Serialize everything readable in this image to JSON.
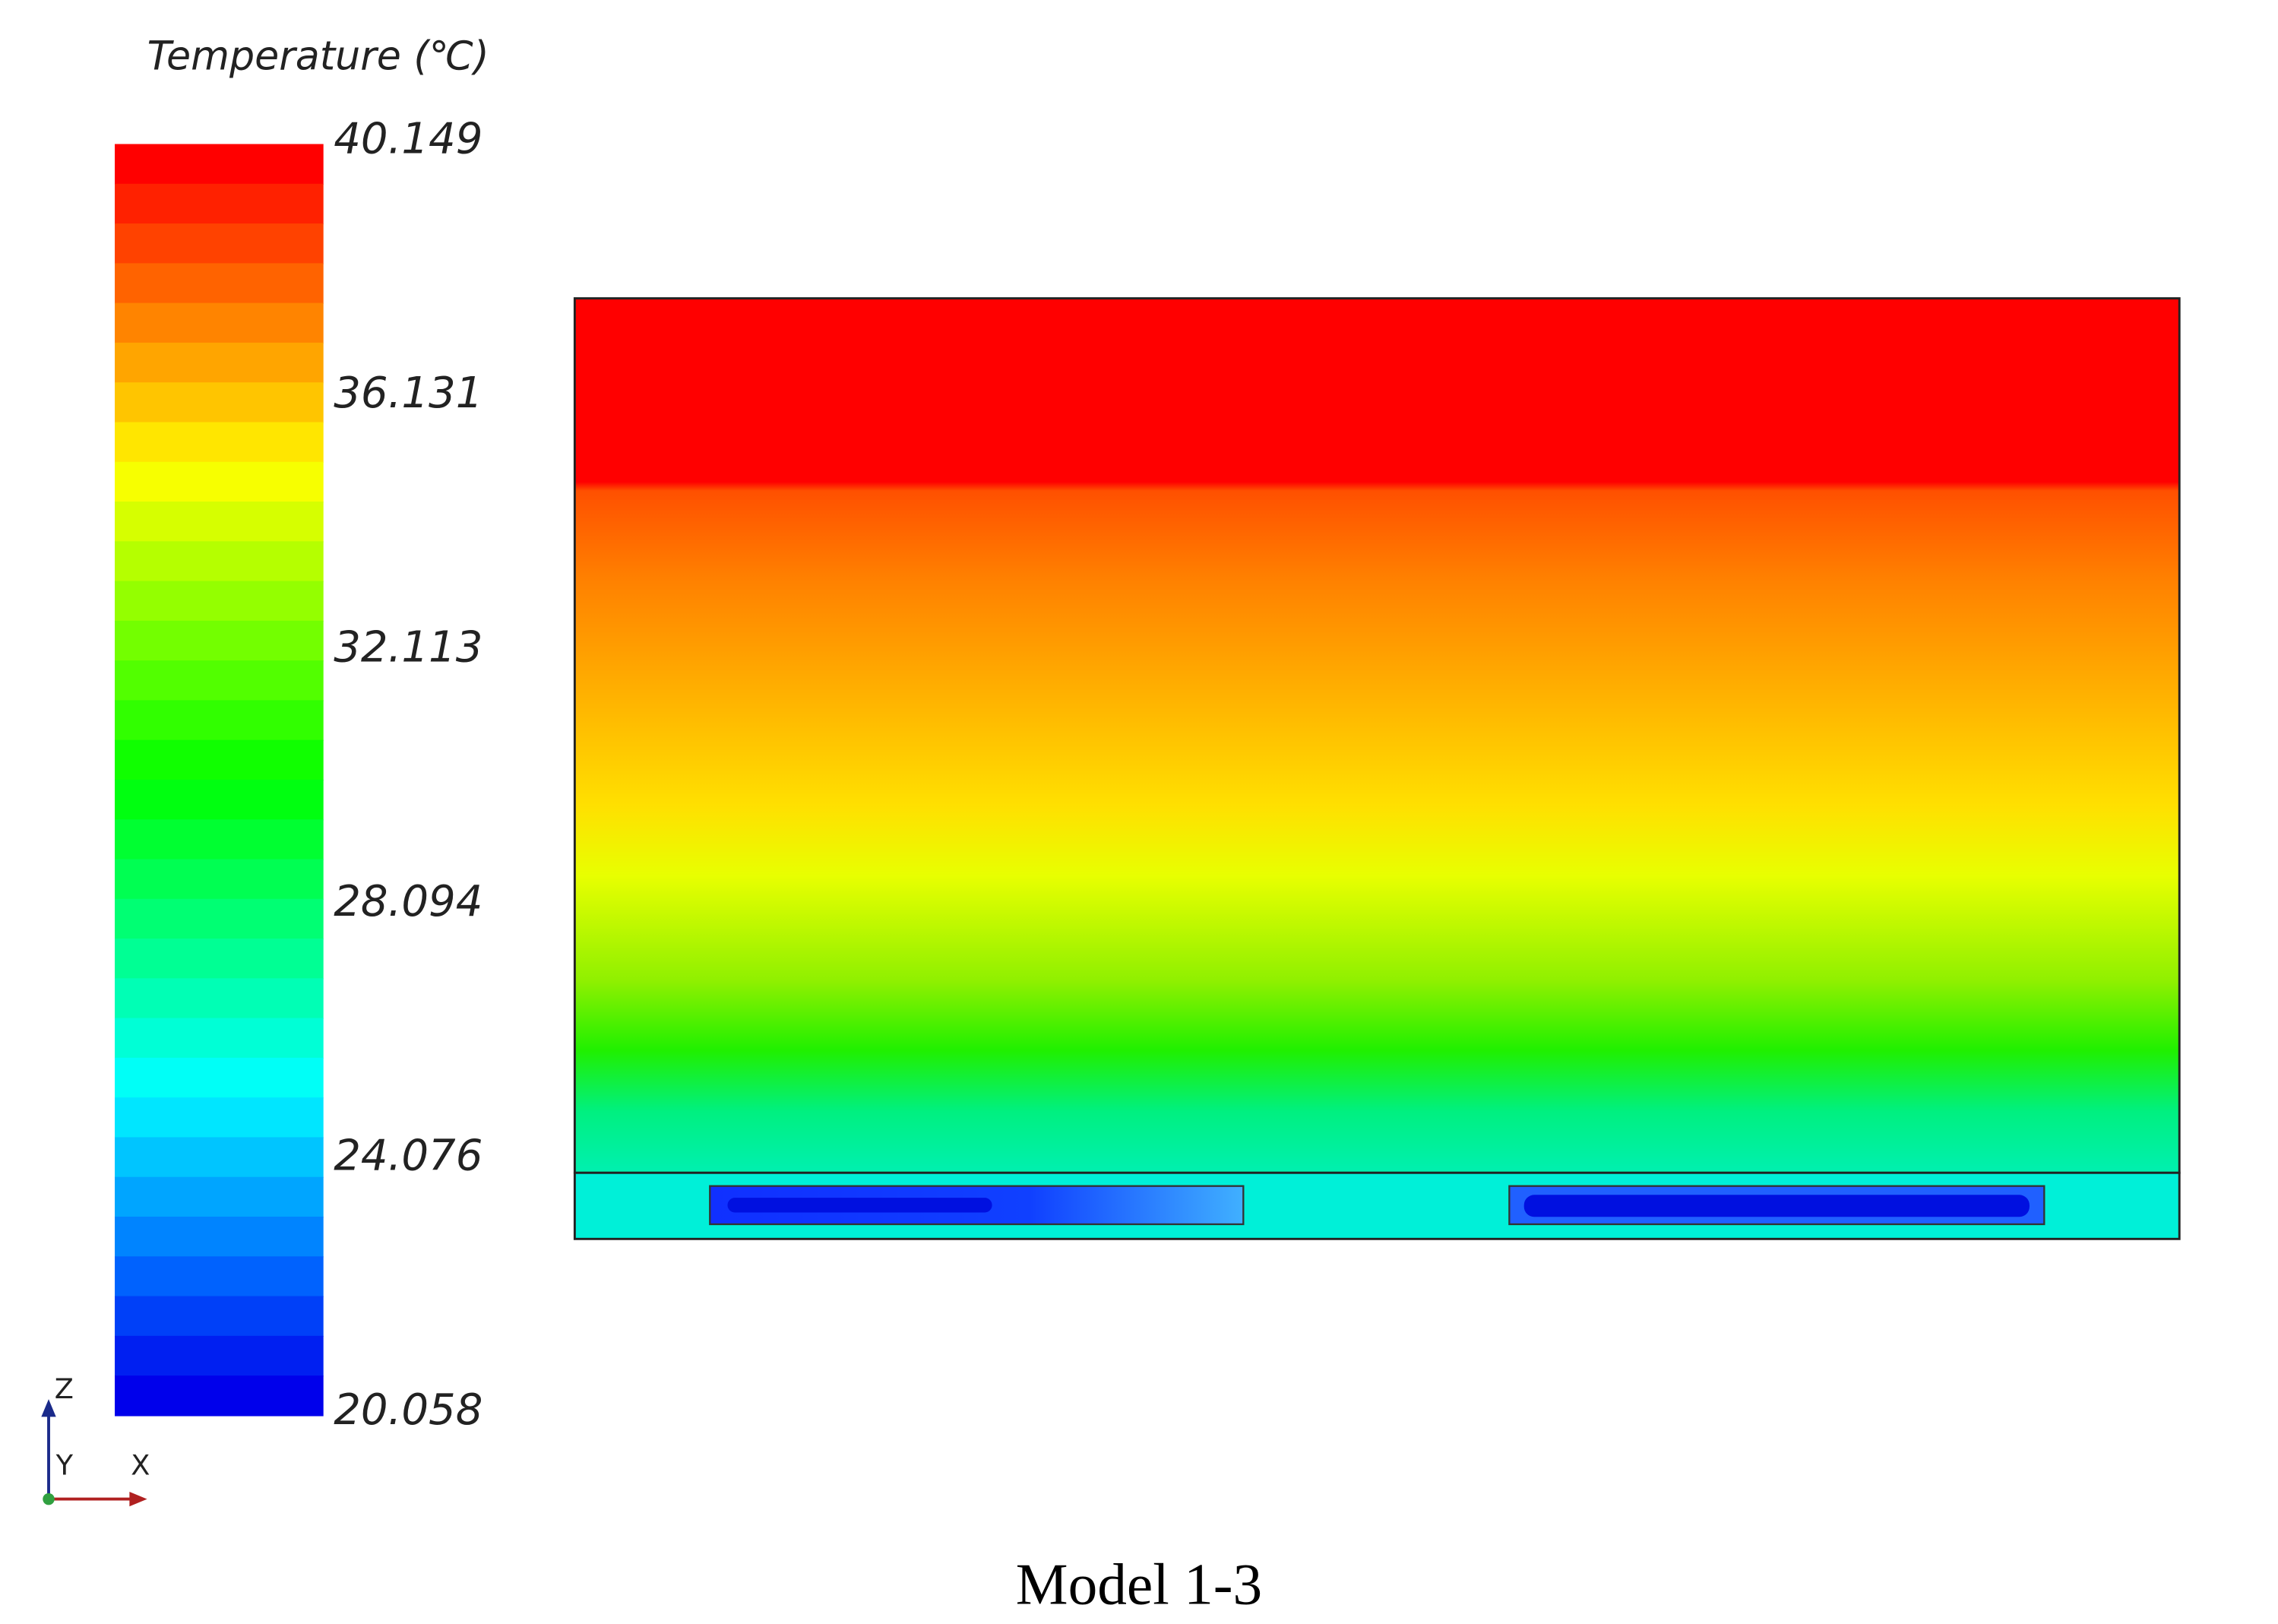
{
  "legend": {
    "title": "Temperature (℃)",
    "ticks": [
      40.149,
      36.131,
      32.113,
      28.094,
      24.076,
      20.058
    ]
  },
  "triad": {
    "z": "Z",
    "y": "Y",
    "x": "X"
  },
  "caption": "Model 1-3"
}
